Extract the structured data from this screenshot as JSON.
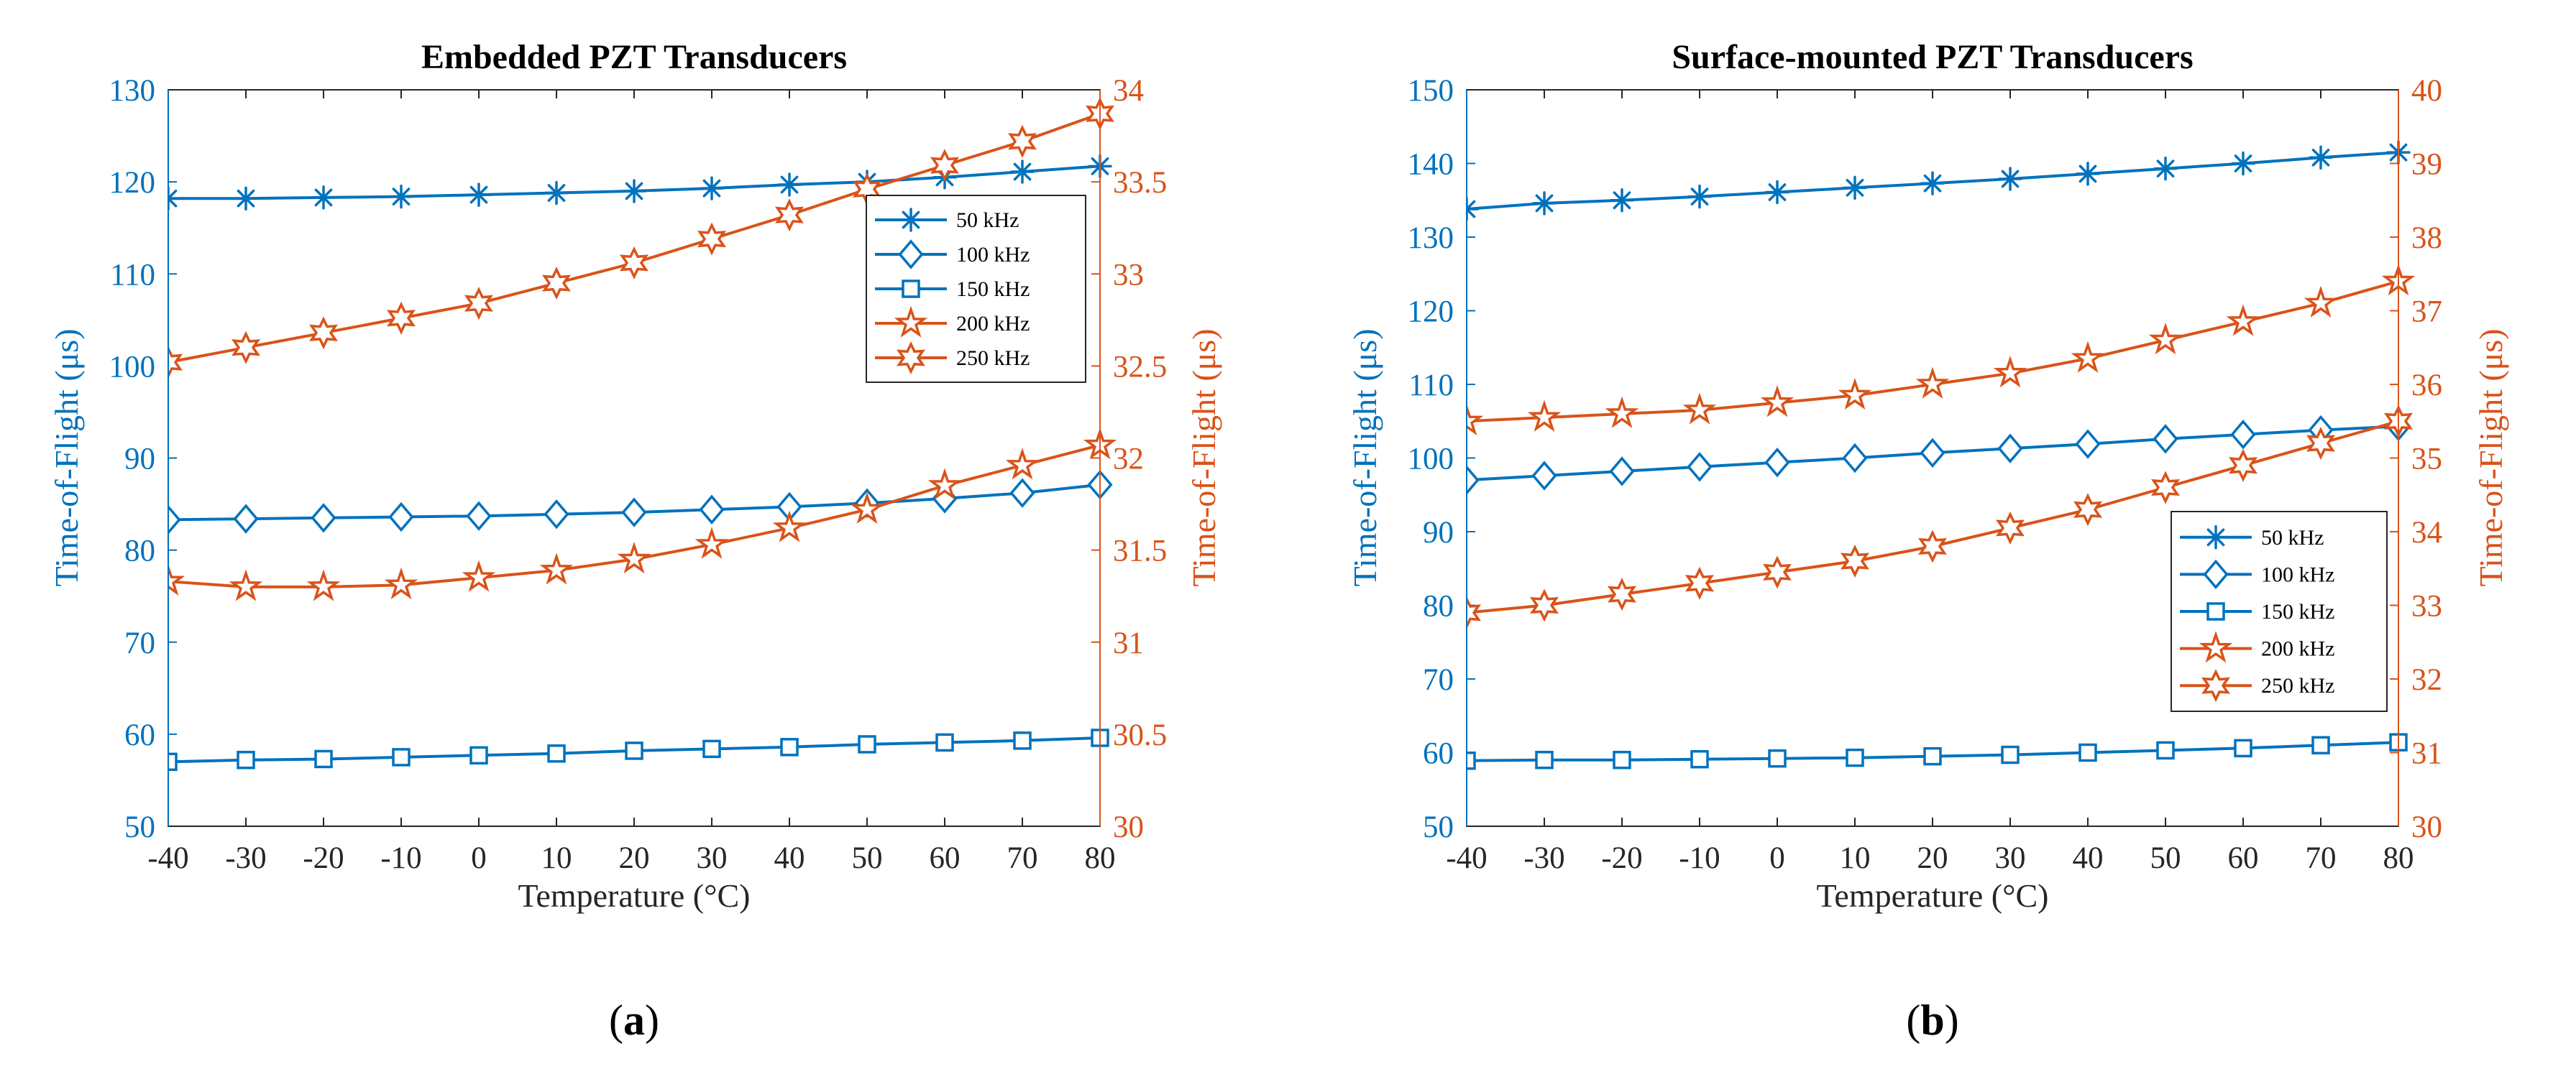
{
  "colors": {
    "blue": "#0072BD",
    "orange": "#D95319",
    "axis": "#262626"
  },
  "chart_data": [
    {
      "type": "line",
      "sublabel_prefix": "(",
      "sublabel": "a",
      "sublabel_suffix": ")",
      "title": "Embedded PZT Transducers",
      "xlabel": "Temperature (°C)",
      "ylabel_left": "Time-of-Flight (μs)",
      "ylabel_right": "Time-of-Flight (μs)",
      "x": [
        -40,
        -30,
        -20,
        -10,
        0,
        10,
        20,
        30,
        40,
        50,
        60,
        70,
        80
      ],
      "xlim": [
        -40,
        80
      ],
      "xticks": [
        "-40",
        "-30",
        "-20",
        "-10",
        "0",
        "10",
        "20",
        "30",
        "40",
        "50",
        "60",
        "70",
        "80"
      ],
      "ylim_left": [
        50,
        130
      ],
      "yticks_left": [
        "50",
        "60",
        "70",
        "80",
        "90",
        "100",
        "110",
        "120",
        "130"
      ],
      "ylim_right": [
        30,
        34
      ],
      "yticks_right": [
        "30",
        "30.5",
        "31",
        "31.5",
        "32",
        "32.5",
        "33",
        "33.5",
        "34"
      ],
      "legend_position": "top-right",
      "series": [
        {
          "name": "50 kHz",
          "axis": "left",
          "marker": "asterisk",
          "color": "#0072BD",
          "values": [
            118.2,
            118.2,
            118.3,
            118.4,
            118.6,
            118.8,
            119.0,
            119.3,
            119.7,
            120.0,
            120.5,
            121.1,
            121.7
          ]
        },
        {
          "name": "100 kHz",
          "axis": "left",
          "marker": "diamond",
          "color": "#0072BD",
          "values": [
            83.3,
            83.4,
            83.5,
            83.6,
            83.7,
            83.9,
            84.1,
            84.4,
            84.7,
            85.1,
            85.6,
            86.2,
            87.1
          ]
        },
        {
          "name": "150 kHz",
          "axis": "left",
          "marker": "square",
          "color": "#0072BD",
          "values": [
            57.0,
            57.2,
            57.3,
            57.5,
            57.7,
            57.9,
            58.2,
            58.4,
            58.6,
            58.9,
            59.1,
            59.3,
            59.6
          ]
        },
        {
          "name": "200 kHz",
          "axis": "right",
          "marker": "pentagram",
          "color": "#D95319",
          "values": [
            31.33,
            31.3,
            31.3,
            31.31,
            31.35,
            31.39,
            31.45,
            31.53,
            31.62,
            31.72,
            31.85,
            31.96,
            32.07
          ]
        },
        {
          "name": "250 kHz",
          "axis": "right",
          "marker": "hexagram",
          "color": "#D95319",
          "values": [
            32.52,
            32.6,
            32.68,
            32.76,
            32.84,
            32.95,
            33.06,
            33.19,
            33.32,
            33.46,
            33.59,
            33.72,
            33.87
          ]
        }
      ]
    },
    {
      "type": "line",
      "sublabel_prefix": "(",
      "sublabel": "b",
      "sublabel_suffix": ")",
      "title": "Surface-mounted PZT Transducers",
      "xlabel": "Temperature (°C)",
      "ylabel_left": "Time-of-Flight (μs)",
      "ylabel_right": "Time-of-Flight (μs)",
      "x": [
        -40,
        -30,
        -20,
        -10,
        0,
        10,
        20,
        30,
        40,
        50,
        60,
        70,
        80
      ],
      "xlim": [
        -40,
        80
      ],
      "xticks": [
        "-40",
        "-30",
        "-20",
        "-10",
        "0",
        "10",
        "20",
        "30",
        "40",
        "50",
        "60",
        "70",
        "80"
      ],
      "ylim_left": [
        50,
        150
      ],
      "yticks_left": [
        "50",
        "60",
        "70",
        "80",
        "90",
        "100",
        "110",
        "120",
        "130",
        "140",
        "150"
      ],
      "ylim_right": [
        30,
        40
      ],
      "yticks_right": [
        "30",
        "31",
        "32",
        "33",
        "34",
        "35",
        "36",
        "37",
        "38",
        "39",
        "40"
      ],
      "legend_position": "bottom-right",
      "series": [
        {
          "name": "50 kHz",
          "axis": "left",
          "marker": "asterisk",
          "color": "#0072BD",
          "values": [
            133.8,
            134.6,
            135.0,
            135.5,
            136.1,
            136.7,
            137.3,
            137.9,
            138.6,
            139.3,
            140.0,
            140.8,
            141.5
          ]
        },
        {
          "name": "100 kHz",
          "axis": "left",
          "marker": "diamond",
          "color": "#0072BD",
          "values": [
            97.0,
            97.6,
            98.2,
            98.8,
            99.4,
            100.0,
            100.7,
            101.3,
            101.9,
            102.6,
            103.2,
            103.8,
            104.3
          ]
        },
        {
          "name": "150 kHz",
          "axis": "left",
          "marker": "square",
          "color": "#0072BD",
          "values": [
            58.9,
            59.0,
            59.0,
            59.1,
            59.2,
            59.3,
            59.5,
            59.7,
            60.0,
            60.3,
            60.6,
            61.0,
            61.4
          ]
        },
        {
          "name": "200 kHz",
          "axis": "right",
          "marker": "pentagram",
          "color": "#D95319",
          "values": [
            35.5,
            35.55,
            35.6,
            35.65,
            35.75,
            35.85,
            36.0,
            36.15,
            36.35,
            36.6,
            36.85,
            37.1,
            37.4
          ]
        },
        {
          "name": "250 kHz",
          "axis": "right",
          "marker": "hexagram",
          "color": "#D95319",
          "values": [
            32.9,
            33.0,
            33.15,
            33.3,
            33.45,
            33.6,
            33.8,
            34.05,
            34.3,
            34.6,
            34.9,
            35.2,
            35.5
          ]
        }
      ]
    }
  ]
}
